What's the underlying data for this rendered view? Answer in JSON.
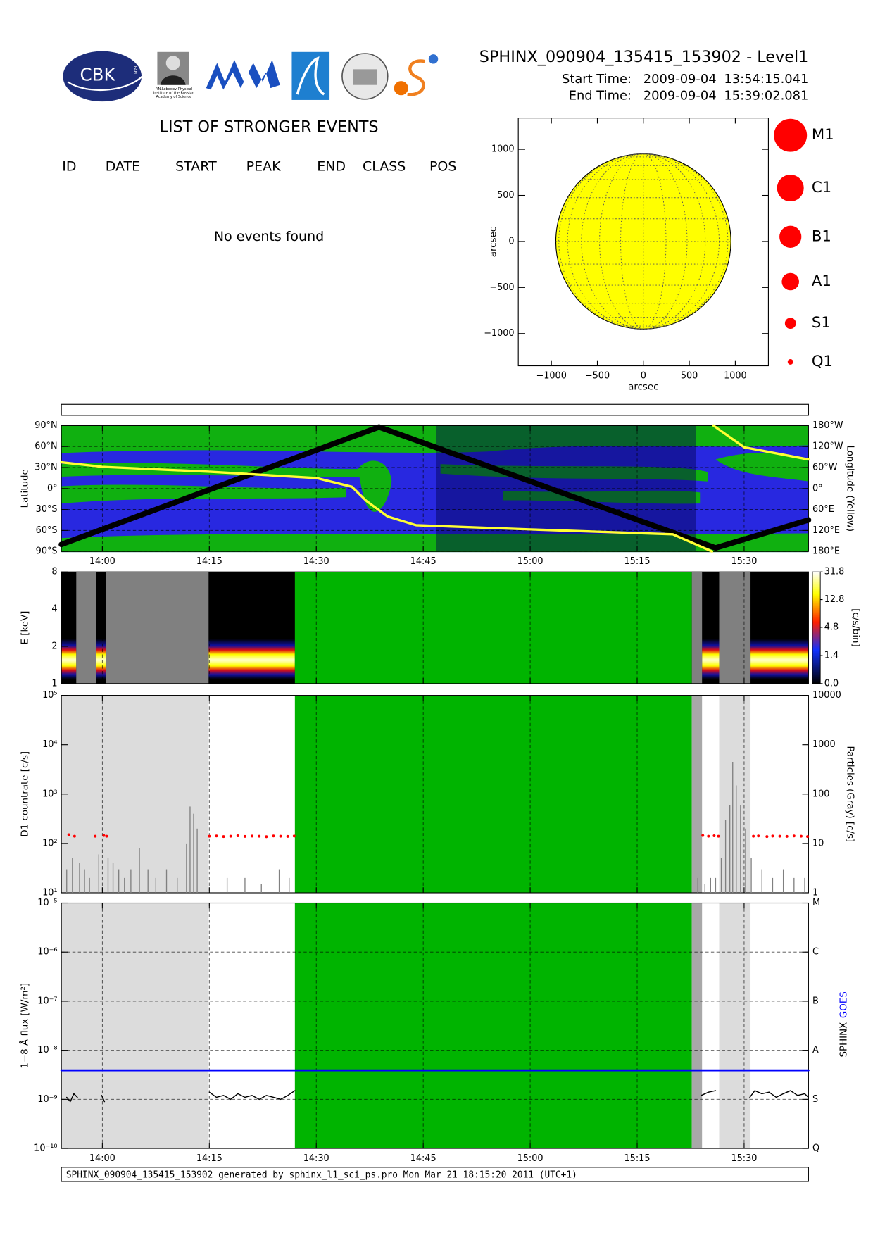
{
  "header": {
    "title": "SPHINX_090904_135415_153902 - Level1",
    "start_label": "Start Time:",
    "start_date": "2009-09-04",
    "start_time": "13:54:15.041",
    "end_label": "End Time:",
    "end_date": "2009-09-04",
    "end_time": "15:39:02.081",
    "logo_cbk": "CBK",
    "logo_pan": "PAN",
    "logo_lebedev": [
      "P.N.Lebedev Physical",
      "Institute of the Russian",
      "Academy of Science"
    ]
  },
  "events": {
    "title": "LIST OF STRONGER EVENTS",
    "columns": [
      "ID",
      "DATE",
      "START",
      "PEAK",
      "END",
      "CLASS",
      "POS"
    ],
    "message": "No events found"
  },
  "chart_data": [
    {
      "type": "disk",
      "xlabel": "arcsec",
      "ylabel": "arcsec",
      "xlim": [
        -1360,
        1360
      ],
      "ylim": [
        -1350,
        1340
      ],
      "xticks": [
        {
          "value": -1000,
          "label": "−1000"
        },
        {
          "value": -500,
          "label": "−500"
        },
        0,
        500,
        1000
      ],
      "yticks": [
        {
          "value": -1000,
          "label": "−1000"
        },
        {
          "value": -500,
          "label": "−500"
        },
        0,
        500,
        1000
      ],
      "radius": 952,
      "color": "#ffff00",
      "legend": [
        "M1",
        "C1",
        "B1",
        "A1",
        "S1",
        "Q1"
      ],
      "legend_color": "#ff0000"
    },
    {
      "type": "orbit",
      "ylabel": "Latitude",
      "y2label": "Longitude (Yellow)",
      "xlim": [
        834.25,
        939.03
      ],
      "xticks": [
        {
          "value": 840,
          "label": "14:00"
        },
        {
          "value": 855,
          "label": "14:15"
        },
        {
          "value": 870,
          "label": "14:30"
        },
        {
          "value": 885,
          "label": "14:45"
        },
        {
          "value": 900,
          "label": "15:00"
        },
        {
          "value": 915,
          "label": "15:15"
        },
        {
          "value": 930,
          "label": "15:30"
        }
      ],
      "ylim": [
        -90,
        90
      ],
      "yticks": [
        {
          "value": -90,
          "label": "90°S"
        },
        {
          "value": -60,
          "label": "60°S"
        },
        {
          "value": -30,
          "label": "30°S"
        },
        {
          "value": 0,
          "label": "0°"
        },
        {
          "value": 30,
          "label": "30°N"
        },
        {
          "value": 60,
          "label": "60°N"
        },
        {
          "value": 90,
          "label": "90°N"
        }
      ],
      "y2lim": [
        -180,
        180
      ],
      "y2ticks": [
        {
          "value": -180,
          "label": "180°E"
        },
        {
          "value": -120,
          "label": "120°E"
        },
        {
          "value": -60,
          "label": "60°E"
        },
        {
          "value": 0,
          "label": "0°"
        },
        {
          "value": 60,
          "label": "60°W"
        },
        {
          "value": 120,
          "label": "120°W"
        },
        {
          "value": 180,
          "label": "180°W"
        }
      ],
      "grid": "both",
      "shade": {
        "x": [
          886.8,
          923.2
        ],
        "color": "#000050"
      },
      "series": [
        {
          "color": "#000000",
          "style": "line",
          "width": 7,
          "x": [
            834.25,
            878.8,
            926.0,
            939.03
          ],
          "values": [
            -80,
            88,
            -85,
            -45
          ]
        },
        {
          "color": "#ffff33",
          "style": "line",
          "width": 3,
          "axis": "y2",
          "x": [
            834.25,
            840,
            855,
            870,
            875,
            877,
            880,
            884,
            900,
            920,
            925.5,
            925.6,
            925.7,
            930,
            939.03
          ],
          "values": [
            75,
            62,
            48,
            30,
            5,
            -35,
            -80,
            -105,
            -117,
            -131,
            -180,
            null,
            180,
            118,
            83
          ]
        }
      ]
    },
    {
      "type": "spectrogram",
      "ylabel": "E [keV]",
      "clabel": "[c/s/bin]",
      "xlim": [
        834.25,
        939.03
      ],
      "xticks": [
        840,
        855,
        870,
        885,
        900,
        915,
        930
      ],
      "ylim": [
        1,
        8
      ],
      "ylog": true,
      "yticks": [
        1,
        2,
        4,
        8
      ],
      "grid": "x",
      "clim": [
        0,
        31.8
      ],
      "cscale": "log1p",
      "cticks": [
        31.8,
        12.8,
        4.8,
        1.4,
        {
          "value": 0,
          "label": "0.0"
        }
      ],
      "spectrum": [
        [
          834.25,
          836.34
        ],
        [
          839.1,
          840.5
        ],
        [
          854.9,
          867.0
        ],
        [
          924.1,
          926.5
        ],
        [
          930.9,
          939.03
        ]
      ],
      "intervals": [
        {
          "x": [
            836.34,
            839.1
          ],
          "color": "#808080"
        },
        {
          "x": [
            840.5,
            854.9
          ],
          "color": "#808080"
        },
        {
          "x": [
            867.0,
            922.67
          ],
          "color": "#00b400"
        },
        {
          "x": [
            922.67,
            924.1
          ],
          "color": "#808080"
        },
        {
          "x": [
            926.5,
            930.9
          ],
          "color": "#808080"
        }
      ]
    },
    {
      "type": "lightcurve",
      "ylabel": "D1 countrate [c/s]",
      "y2label": "Particles (Gray) [c/s]",
      "xlim": [
        834.25,
        939.03
      ],
      "xticks": [
        840,
        855,
        870,
        885,
        900,
        915,
        930
      ],
      "ylim": [
        10,
        100000
      ],
      "ylog": true,
      "yticks": [
        {
          "value": 10,
          "label": "10¹"
        },
        {
          "value": 100,
          "label": "10²"
        },
        {
          "value": 1000,
          "label": "10³"
        },
        {
          "value": 10000,
          "label": "10⁴"
        },
        {
          "value": 100000,
          "label": "10⁵"
        }
      ],
      "y2lim": [
        1,
        10000
      ],
      "y2log": true,
      "y2ticks": [
        1,
        10,
        100,
        1000,
        10000
      ],
      "grid": "x",
      "intervals": [
        {
          "x": [
            834.25,
            854.9
          ],
          "color": "#dcdcdc"
        },
        {
          "x": [
            867.0,
            922.67
          ],
          "color": "#00b400"
        },
        {
          "x": [
            922.67,
            924.1
          ],
          "color": "#a8a8a8"
        },
        {
          "x": [
            926.5,
            930.9
          ],
          "color": "#dcdcdc"
        }
      ],
      "series": [
        {
          "color": "#808080",
          "style": "bars",
          "axis": "y2",
          "x": [
            835,
            835.8,
            836.8,
            837.5,
            838.2,
            839.5,
            840.8,
            841.5,
            842.3,
            843.1,
            844,
            845.2,
            846.4,
            847.5,
            849,
            850.5,
            851.8,
            852.3,
            852.8,
            853.3,
            857.5,
            860,
            862.3,
            864.8,
            866.2,
            923.5,
            924.5,
            925.3,
            926,
            926.8,
            927.4,
            928,
            928.4,
            928.9,
            929.5,
            930.2,
            931,
            932.5,
            934,
            935.5,
            937,
            938.5
          ],
          "values": [
            3,
            5,
            4,
            3,
            2,
            6,
            5,
            4,
            3,
            2,
            3,
            8,
            3,
            2,
            3,
            2,
            10,
            56,
            40,
            20,
            2,
            2,
            1.5,
            3,
            2,
            2,
            1.5,
            2,
            2,
            5,
            30,
            60,
            450,
            150,
            60,
            20,
            5,
            3,
            2,
            3,
            2,
            2
          ]
        },
        {
          "color": "#ff0000",
          "style": "dots",
          "x": [
            835.3,
            836.1,
            839.0,
            840.2,
            840.6,
            855,
            856,
            857,
            858,
            859,
            860,
            861,
            862,
            863,
            864,
            865,
            866,
            866.9,
            924.2,
            925,
            925.8,
            926.4,
            931.3,
            932,
            933.2,
            934,
            935,
            936,
            937,
            938,
            938.9
          ],
          "values": [
            150,
            140,
            140,
            145,
            140,
            140,
            142,
            138,
            140,
            143,
            139,
            141,
            140,
            137,
            142,
            140,
            139,
            141,
            145,
            140,
            143,
            140,
            140,
            142,
            138,
            141,
            140,
            139,
            142,
            140,
            138
          ]
        }
      ]
    },
    {
      "type": "lightcurve",
      "ylabel": "1−8 Å flux [W/m²]",
      "xlim": [
        834.25,
        939.03
      ],
      "xticks": [
        {
          "value": 840,
          "label": "14:00"
        },
        {
          "value": 855,
          "label": "14:15"
        },
        {
          "value": 870,
          "label": "14:30"
        },
        {
          "value": 885,
          "label": "14:45"
        },
        {
          "value": 900,
          "label": "15:00"
        },
        {
          "value": 915,
          "label": "15:15"
        },
        {
          "value": 930,
          "label": "15:30"
        }
      ],
      "ylim": [
        1e-10,
        1e-05
      ],
      "ylog": true,
      "yticks": [
        {
          "value": 1e-10,
          "label": "10⁻¹⁰"
        },
        {
          "value": 1e-09,
          "label": "10⁻⁹"
        },
        {
          "value": 1e-08,
          "label": "10⁻⁸"
        },
        {
          "value": 1e-07,
          "label": "10⁻⁷"
        },
        {
          "value": 1e-06,
          "label": "10⁻⁶"
        },
        {
          "value": 1e-05,
          "label": "10⁻⁵"
        }
      ],
      "y2lim": [
        1e-10,
        1e-05
      ],
      "y2log": true,
      "y2ticks": [
        {
          "value": 1e-10,
          "label": "Q"
        },
        {
          "value": 1e-09,
          "label": "S"
        },
        {
          "value": 1e-08,
          "label": "A"
        },
        {
          "value": 1e-07,
          "label": "B"
        },
        {
          "value": 1e-06,
          "label": "C"
        },
        {
          "value": 1e-05,
          "label": "M"
        }
      ],
      "grid": "both",
      "intervals": [
        {
          "x": [
            834.25,
            854.9
          ],
          "color": "#dcdcdc"
        },
        {
          "x": [
            867.0,
            922.67
          ],
          "color": "#00b400"
        },
        {
          "x": [
            922.67,
            924.1
          ],
          "color": "#a8a8a8"
        },
        {
          "x": [
            926.5,
            930.9
          ],
          "color": "#dcdcdc"
        }
      ],
      "series": [
        {
          "name": "SPHINX",
          "color": "#000000",
          "style": "line",
          "width": 1.3,
          "x": [
            835,
            835.5,
            836,
            836.5,
            838,
            839.9,
            840.3,
            848,
            855,
            856,
            857,
            858,
            859,
            860,
            861,
            862,
            863,
            864,
            865,
            866,
            867,
            895,
            924,
            925,
            926,
            928,
            930.8,
            931.5,
            932.5,
            933.5,
            934.5,
            935.5,
            936.5,
            937.5,
            938.5,
            939
          ],
          "values": [
            1.1e-09,
            9e-10,
            1.3e-09,
            1.1e-09,
            null,
            1.2e-09,
            9e-10,
            null,
            1.4e-09,
            1.1e-09,
            1.2e-09,
            1e-09,
            1.3e-09,
            1.1e-09,
            1.2e-09,
            1e-09,
            1.2e-09,
            1.1e-09,
            1e-09,
            1.2e-09,
            1.5e-09,
            null,
            1.2e-09,
            1.4e-09,
            1.5e-09,
            null,
            1.1e-09,
            1.5e-09,
            1.3e-09,
            1.4e-09,
            1.1e-09,
            1.3e-09,
            1.5e-09,
            1.2e-09,
            1.3e-09,
            1.1e-09
          ]
        },
        {
          "name": "GOES",
          "color": "#0000ff",
          "style": "line",
          "width": 2.5,
          "x": [
            834.25,
            939.03
          ],
          "values": [
            3.9e-09,
            3.9e-09
          ]
        }
      ]
    }
  ],
  "footer": "SPHINX_090904_135415_153902 generated by sphinx_l1_sci_ps.pro Mon Mar 21 18:15:20 2011 (UTC+1)"
}
